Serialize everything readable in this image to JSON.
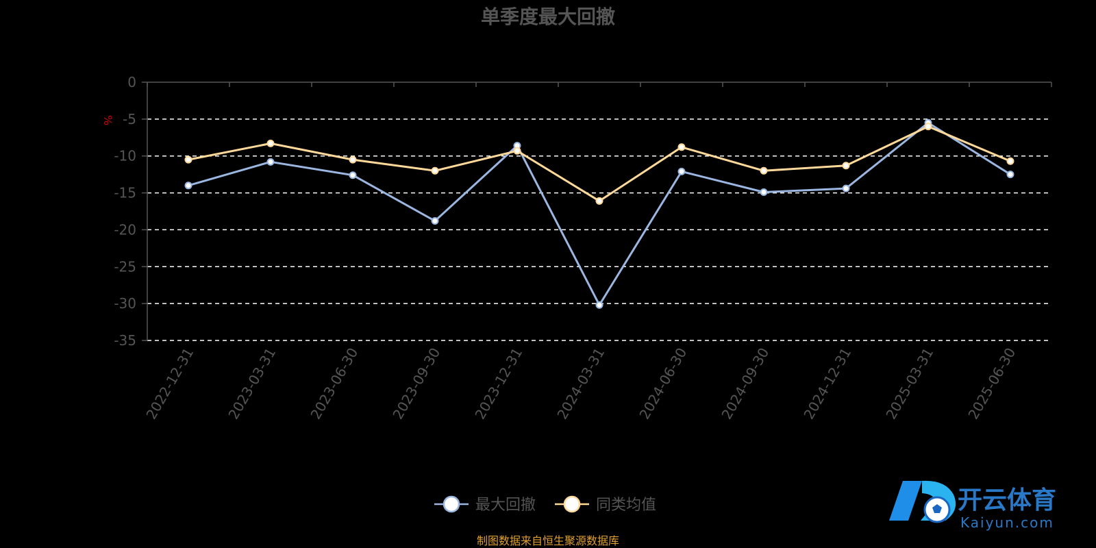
{
  "title": "单季度最大回撤",
  "source_note": "制图数据来自恒生聚源数据库",
  "logo": {
    "main": "开云体育",
    "sub": "Kaiyun.com"
  },
  "colors": {
    "series1": "#9bb6e0",
    "series2": "#ffd99a",
    "grid": "#ffffff",
    "axis": "#555555",
    "source": "#e0a030",
    "unit": "#cc0000"
  },
  "chart_data": {
    "type": "line",
    "ylabel": "%",
    "ylim": [
      -35,
      0
    ],
    "yticks": [
      0,
      -5,
      -10,
      -15,
      -20,
      -25,
      -30,
      -35
    ],
    "ytick_labels": [
      "0",
      "-5",
      "-10",
      "-15",
      "-20",
      "-25",
      "-30",
      "-35"
    ],
    "grid": true,
    "legend_position": "bottom-center",
    "categories": [
      "2022-12-31",
      "2023-03-31",
      "2023-06-30",
      "2023-09-30",
      "2023-12-31",
      "2024-03-31",
      "2024-06-30",
      "2024-09-30",
      "2024-12-31",
      "2025-03-31",
      "2025-06-30"
    ],
    "series": [
      {
        "name": "最大回撤",
        "values": [
          -14.0,
          -10.8,
          -12.6,
          -18.8,
          -8.6,
          -30.2,
          -12.1,
          -14.9,
          -14.4,
          -5.5,
          -12.5
        ]
      },
      {
        "name": "同类均值",
        "values": [
          -10.5,
          -8.3,
          -10.5,
          -12.0,
          -9.3,
          -16.1,
          -8.8,
          -12.0,
          -11.3,
          -6.0,
          -10.7
        ]
      }
    ]
  }
}
